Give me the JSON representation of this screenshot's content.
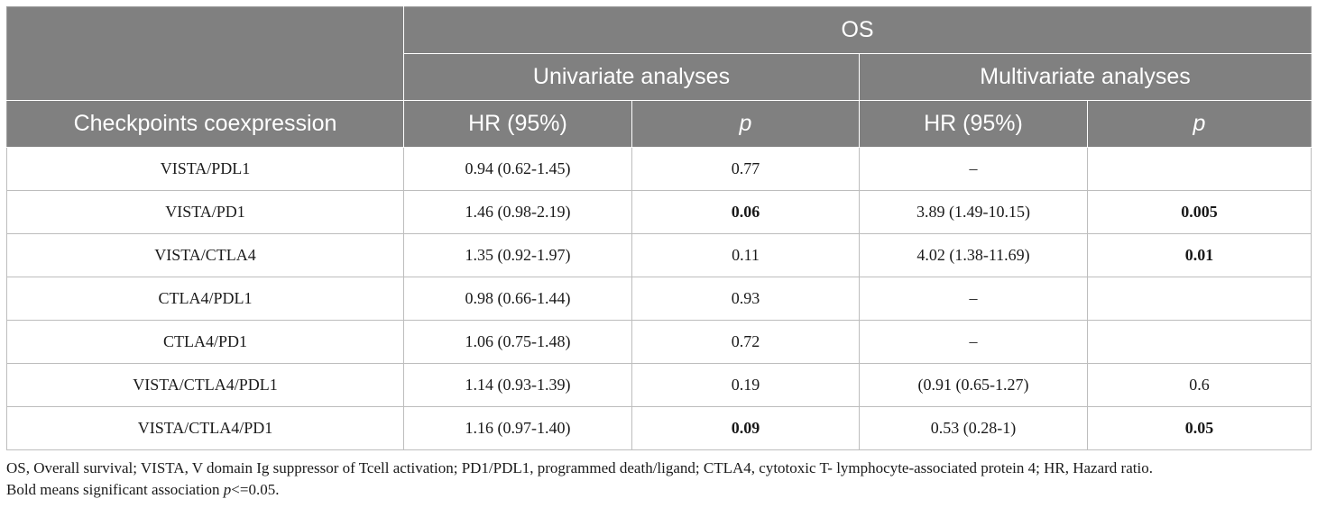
{
  "header": {
    "group_label": "OS",
    "subgroups": [
      "Univariate analyses",
      "Multivariate analyses"
    ],
    "row_header_label": "Checkpoints coexpression",
    "columns": [
      "HR (95%)",
      "p",
      "HR (95%)",
      "p"
    ]
  },
  "rows": [
    {
      "name": "VISTA/PDL1",
      "uni_hr": "0.94 (0.62-1.45)",
      "uni_p": "0.77",
      "multi_hr": "–",
      "multi_p": ""
    },
    {
      "name": "VISTA/PD1",
      "uni_hr": "1.46 (0.98-2.19)",
      "uni_p": "0.06",
      "multi_hr": "3.89 (1.49-10.15)",
      "multi_p": "0.005"
    },
    {
      "name": "VISTA/CTLA4",
      "uni_hr": "1.35 (0.92-1.97)",
      "uni_p": "0.11",
      "multi_hr": "4.02 (1.38-11.69)",
      "multi_p": "0.01"
    },
    {
      "name": "CTLA4/PDL1",
      "uni_hr": "0.98 (0.66-1.44)",
      "uni_p": "0.93",
      "multi_hr": "–",
      "multi_p": ""
    },
    {
      "name": "CTLA4/PD1",
      "uni_hr": "1.06 (0.75-1.48)",
      "uni_p": "0.72",
      "multi_hr": "–",
      "multi_p": ""
    },
    {
      "name": "VISTA/CTLA4/PDL1",
      "uni_hr": "1.14 (0.93-1.39)",
      "uni_p": "0.19",
      "multi_hr": "(0.91 (0.65-1.27)",
      "multi_p": "0.6"
    },
    {
      "name": "VISTA/CTLA4/PD1",
      "uni_hr": "1.16 (0.97-1.40)",
      "uni_p": "0.09",
      "multi_hr": "0.53 (0.28-1)",
      "multi_p": "0.05"
    }
  ],
  "footnote": {
    "line1": "OS, Overall survival; VISTA, V domain Ig suppressor of Tcell activation; PD1/PDL1, programmed death/ligand; CTLA4, cytotoxic T- lymphocyte-associated protein 4; HR, Hazard ratio.",
    "line2_prefix": "Bold means significant association ",
    "line2_italic": "p",
    "line2_suffix": "<=0.05."
  },
  "colors": {
    "header_bg": "#808080",
    "header_text": "#ffffff",
    "grid": "#bdbdbd",
    "body_text": "#1a1a1a"
  }
}
